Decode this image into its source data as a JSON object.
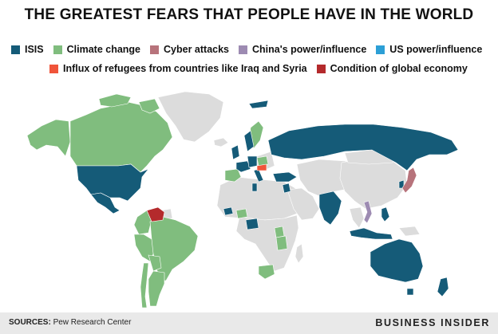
{
  "title": "THE GREATEST FEARS THAT PEOPLE HAVE IN THE WORLD",
  "legend": [
    {
      "label": "ISIS",
      "color": "#155b78"
    },
    {
      "label": "Climate change",
      "color": "#80bd7e"
    },
    {
      "label": "Cyber attacks",
      "color": "#b7737b"
    },
    {
      "label": "China's power/influence",
      "color": "#9d8bb2"
    },
    {
      "label": "US power/influence",
      "color": "#2c9fd6"
    },
    {
      "label": "Influx of refugees from countries like Iraq and Syria",
      "color": "#f0543a"
    },
    {
      "label": "Condition of global economy",
      "color": "#b42a2c"
    }
  ],
  "no_data_color": "#dcdcdc",
  "regions": {
    "isis": [
      "United States",
      "Mexico",
      "Russia",
      "Turkey",
      "United Kingdom",
      "France",
      "Germany",
      "Spain",
      "Italy",
      "Sweden",
      "India",
      "Israel",
      "Jordan",
      "Lebanon",
      "Philippines",
      "Indonesia",
      "Australia",
      "South Korea",
      "Nigeria",
      "Tunisia",
      "Senegal",
      "Ghana"
    ],
    "climate_change": [
      "Canada",
      "Alaska",
      "Brazil",
      "Chile",
      "Argentina",
      "Peru",
      "Colombia",
      "Ecuador",
      "Bolivia",
      "Poland",
      "Tanzania",
      "Kenya",
      "Uganda",
      "Burkina Faso",
      "South Africa"
    ],
    "cyber_attacks": [
      "Japan"
    ],
    "chinas_power": [
      "Vietnam"
    ],
    "us_power": [],
    "refugees": [
      "Hungary"
    ],
    "global_economy": [
      "Venezuela"
    ]
  },
  "footer": {
    "sources_label": "SOURCES:",
    "sources_text": "Pew Research Center",
    "brand": "BUSINESS INSIDER"
  }
}
